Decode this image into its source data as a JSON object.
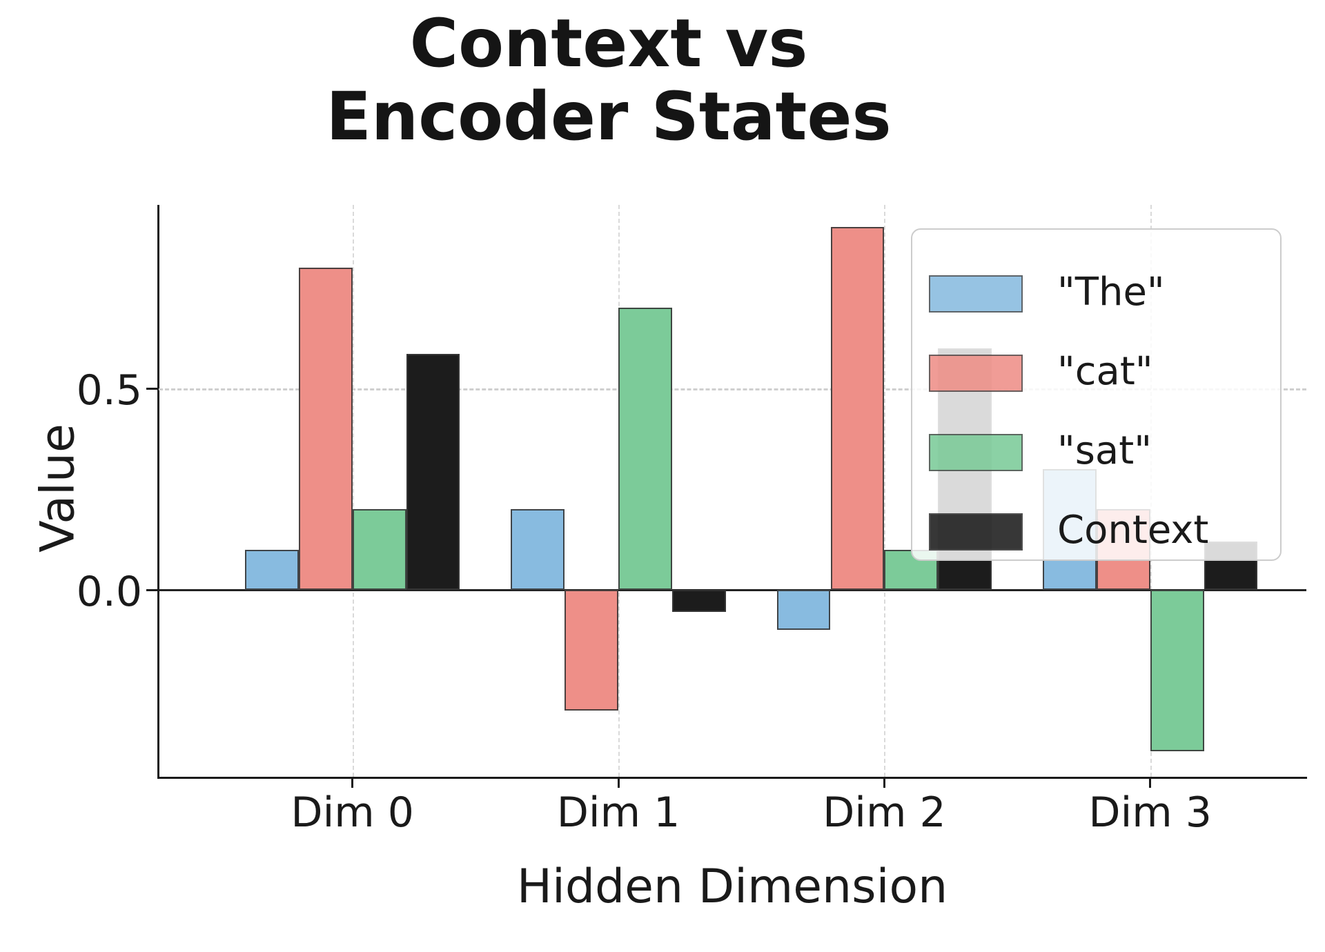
{
  "title": {
    "line1": "Context vs",
    "line2": "Encoder States"
  },
  "axes": {
    "ylabel": "Value",
    "xlabel": "Hidden Dimension",
    "yticks": [
      {
        "label": "0.5",
        "value": 0.5
      },
      {
        "label": "0.0",
        "value": 0.0
      }
    ]
  },
  "legend": {
    "position": "upper right"
  },
  "chart_data": {
    "type": "bar",
    "title": "Context vs Encoder States",
    "xlabel": "Hidden Dimension",
    "ylabel": "Value",
    "categories": [
      "Dim 0",
      "Dim 1",
      "Dim 2",
      "Dim 3"
    ],
    "series": [
      {
        "name": "\"The\"",
        "color": "#88bbe0",
        "values": [
          0.1,
          0.2,
          -0.1,
          0.3
        ]
      },
      {
        "name": "\"cat\"",
        "color": "#ee8f88",
        "values": [
          0.8,
          -0.3,
          0.9,
          0.2
        ]
      },
      {
        "name": "\"sat\"",
        "color": "#7ccb99",
        "values": [
          0.2,
          0.7,
          0.1,
          -0.4
        ]
      },
      {
        "name": "Context",
        "color": "#1c1c1c",
        "values": [
          0.585,
          -0.055,
          0.6,
          0.12
        ]
      }
    ],
    "ylim": [
      -0.465,
      0.955
    ],
    "ytick_values": [
      0.0,
      0.5
    ],
    "grid": true,
    "zero_line": true,
    "legend_position": "upper right"
  }
}
